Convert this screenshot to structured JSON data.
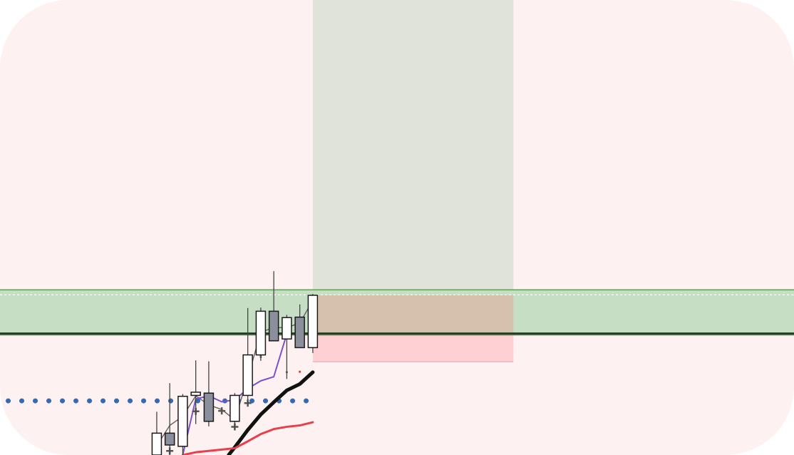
{
  "chart_data": {
    "type": "candlestick",
    "title": "",
    "xlabel": "",
    "ylabel": "",
    "xlim": [
      0,
      58
    ],
    "ylim": [
      0,
      100
    ],
    "grid": false,
    "legend": "none",
    "colors": {
      "background": "#fdf1f1",
      "up_fill": "#ffffff",
      "down_fill": "#8b8f9b",
      "candle_stroke": "#1a1a1a",
      "resistance_zone": "#c6dfc4",
      "resistance_zone_border": "#5c9c55",
      "support_line": "#1e3d1e",
      "target_zone": "#dfe3da",
      "profit_zone": "#d6c1ae",
      "stop_zone": "#ffd0d3",
      "ma_fast": "#7b52c8",
      "ma_mid": "#111111",
      "ma_slow": "#e8404a",
      "price_trace": "#666666",
      "dotted_level": "#3369b8",
      "cross_marker": "#555555",
      "red_dot": "#e04848"
    },
    "candles": [
      {
        "x": 11.45,
        "open": 0.0,
        "high": 9.5,
        "low": 0.0,
        "close": 4.8
      },
      {
        "x": 12.4,
        "open": 4.8,
        "high": 15.8,
        "low": 0.0,
        "close": 2.2
      },
      {
        "x": 13.35,
        "open": 1.9,
        "high": 13.4,
        "low": 0.0,
        "close": 12.9
      },
      {
        "x": 14.3,
        "open": 13.1,
        "high": 20.8,
        "low": 6.8,
        "close": 13.8
      },
      {
        "x": 15.25,
        "open": 13.6,
        "high": 20.6,
        "low": 6.3,
        "close": 7.4
      },
      {
        "x": 17.15,
        "open": 7.4,
        "high": 13.6,
        "low": 5.7,
        "close": 13.1
      },
      {
        "x": 18.1,
        "open": 13.1,
        "high": 32.3,
        "low": 11.3,
        "close": 22.0
      },
      {
        "x": 19.05,
        "open": 22.0,
        "high": 32.4,
        "low": 20.7,
        "close": 31.6
      },
      {
        "x": 20.0,
        "open": 31.6,
        "high": 40.4,
        "low": 25.8,
        "close": 25.1
      },
      {
        "x": 20.95,
        "open": 25.5,
        "high": 30.8,
        "low": 16.7,
        "close": 30.2
      },
      {
        "x": 21.9,
        "open": 30.3,
        "high": 33.1,
        "low": 23.5,
        "close": 23.6
      },
      {
        "x": 22.85,
        "open": 23.6,
        "high": 35.4,
        "low": 22.4,
        "close": 35.1
      }
    ],
    "cross_markers": [
      {
        "x": 12.4,
        "y": 0.9
      },
      {
        "x": 14.3,
        "y": 9.6
      },
      {
        "x": 16.2,
        "y": 9.7
      },
      {
        "x": 17.15,
        "y": 6.2
      },
      {
        "x": 18.1,
        "y": 11.4
      },
      {
        "x": 19.05,
        "y": 22.1
      }
    ],
    "price_trace": {
      "x": [
        11.45,
        12.4,
        13.35,
        14.3,
        15.25,
        16.2,
        17.15,
        18.1,
        19.05,
        20.0,
        20.95,
        21.9,
        22.85
      ],
      "y": [
        2.0,
        6.5,
        8.5,
        13.0,
        11.0,
        10.0,
        7.7,
        17.0,
        27.0,
        28.0,
        28.0,
        29.0,
        34.0
      ]
    },
    "series": [
      {
        "color_key": "ma_fast",
        "x": [
          13.35,
          14.3,
          15.25,
          16.2,
          17.15,
          18.1,
          19.05,
          20.0,
          20.95
        ],
        "y": [
          0.0,
          12.3,
          13.0,
          11.7,
          12.1,
          14.6,
          16.3,
          17.2,
          26.6
        ]
      },
      {
        "color_key": "ma_mid",
        "x": [
          16.7,
          17.15,
          18.1,
          19.05,
          20.0,
          20.95,
          21.9,
          22.85
        ],
        "y": [
          0.0,
          1.7,
          5.5,
          8.9,
          11.6,
          14.2,
          15.6,
          18.2
        ]
      },
      {
        "color_key": "ma_slow",
        "x": [
          13.35,
          14.3,
          15.25,
          16.2,
          17.15,
          18.1,
          19.05,
          20.0,
          20.95,
          21.9,
          22.85
        ],
        "y": [
          0.0,
          0.6,
          0.9,
          1.2,
          1.5,
          3.0,
          4.6,
          5.7,
          6.2,
          6.5,
          7.2
        ]
      }
    ],
    "dotted_level": {
      "y": 11.9,
      "x_from": 0.6,
      "x_to": 22.85
    },
    "red_dots": [
      {
        "x": 20.95,
        "y": 18.2
      },
      {
        "x": 21.9,
        "y": 18.3
      }
    ],
    "resistance_zone": {
      "y_low": 26.4,
      "y_high": 36.3
    },
    "resistance_dotted_line": 35.2,
    "support_line": 26.6,
    "trade_box": {
      "x_start": 22.85,
      "x_end": 37.5,
      "entry": 35.1,
      "target": 100.0,
      "stop": 20.5
    }
  }
}
